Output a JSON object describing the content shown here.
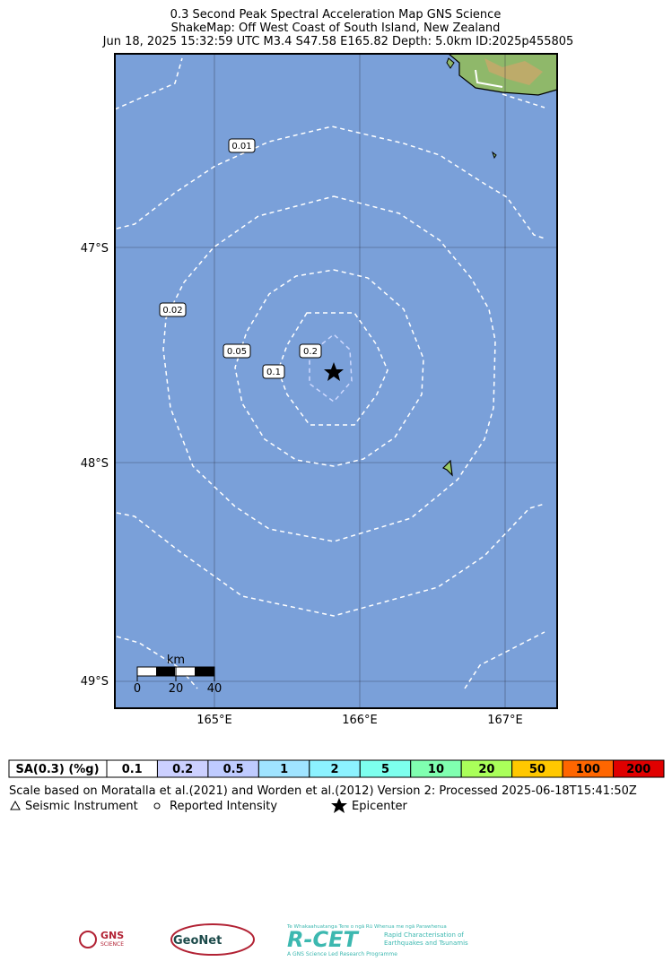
{
  "header": {
    "title_lines": [
      "0.3 Second Peak Spectral Acceleration Map GNS Science",
      "ShakeMap: Off West Coast of South Island, New Zealand",
      "Jun 18, 2025 15:32:59 UTC M3.4 S47.58 E165.82 Depth: 5.0km ID:2025p455805"
    ]
  },
  "map": {
    "lat_labels": [
      "47°S",
      "48°S",
      "49°S"
    ],
    "lon_labels": [
      "165°E",
      "166°E",
      "167°E"
    ],
    "contour_labels": [
      "0.01",
      "0.02",
      "0.05",
      "0.1",
      "0.2"
    ],
    "scale_bar": {
      "unit": "km",
      "labels": [
        "0",
        "20",
        "40"
      ]
    }
  },
  "legend": {
    "title": "SA(0.3) (%g)",
    "bins": [
      {
        "label": "0.1",
        "color": "#ffffff"
      },
      {
        "label": "0.2",
        "color": "#ccd0ff"
      },
      {
        "label": "0.5",
        "color": "#bfcbff"
      },
      {
        "label": "1",
        "color": "#a0e4ff"
      },
      {
        "label": "2",
        "color": "#8cf2ff"
      },
      {
        "label": "5",
        "color": "#7dffee"
      },
      {
        "label": "10",
        "color": "#80ffb0"
      },
      {
        "label": "20",
        "color": "#aaff5a"
      },
      {
        "label": "50",
        "color": "#ffc800"
      },
      {
        "label": "100",
        "color": "#ff6600"
      },
      {
        "label": "200",
        "color": "#e00000"
      }
    ],
    "note": "Scale based on Moratalla et al.(2021) and Worden et al.(2012)   Version 2: Processed 2025-06-18T15:41:50Z",
    "symbols": [
      "Seismic Instrument",
      "Reported Intensity",
      "Epicenter"
    ]
  },
  "logos": {
    "gns": "GNS",
    "gns_sub": "SCIENCE",
    "geonet": "GeoNet",
    "rcet": "R-CET",
    "rcet_top": "Te Whakaahuatanga Tere o ngā Rū Whenua me ngā Parawhenua",
    "rcet_desc_1": "Rapid Characterisation of",
    "rcet_desc_2": "Earthquakes and Tsunamis",
    "rcet_bottom": "A GNS Science Led Research Programme"
  }
}
